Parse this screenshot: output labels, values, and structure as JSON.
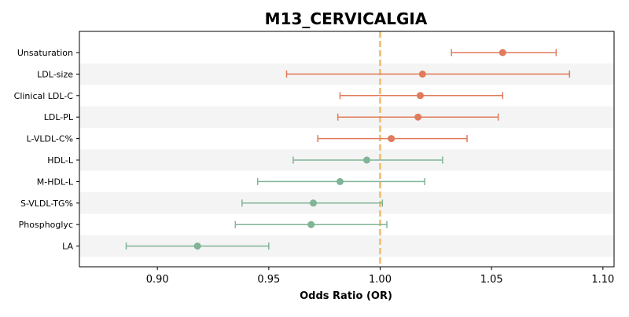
{
  "chart_data": {
    "type": "forest",
    "title": "M13_CERVICALGIA",
    "xlabel": "Odds Ratio (OR)",
    "ylabel": "",
    "xlim": [
      0.865,
      1.105
    ],
    "xticks": [
      0.9,
      0.95,
      1.0,
      1.05,
      1.1
    ],
    "xtick_labels": [
      "0.90",
      "0.95",
      "1.00",
      "1.05",
      "1.10"
    ],
    "reference_line": 1.0,
    "grid": false,
    "row_banding": true,
    "colors": {
      "positive": "#e07b5b",
      "negative": "#7fb496",
      "reference": "#f2c57c",
      "band": "#f4f4f4"
    },
    "rows": [
      {
        "label": "Unsaturation",
        "or": 1.055,
        "lower": 1.032,
        "upper": 1.079
      },
      {
        "label": "LDL-size",
        "or": 1.019,
        "lower": 0.958,
        "upper": 1.085
      },
      {
        "label": "Clinical LDL-C",
        "or": 1.018,
        "lower": 0.982,
        "upper": 1.055
      },
      {
        "label": "LDL-PL",
        "or": 1.017,
        "lower": 0.981,
        "upper": 1.053
      },
      {
        "label": "L-VLDL-C%",
        "or": 1.005,
        "lower": 0.972,
        "upper": 1.039
      },
      {
        "label": "HDL-L",
        "or": 0.994,
        "lower": 0.961,
        "upper": 1.028
      },
      {
        "label": "M-HDL-L",
        "or": 0.982,
        "lower": 0.945,
        "upper": 1.02
      },
      {
        "label": "S-VLDL-TG%",
        "or": 0.97,
        "lower": 0.938,
        "upper": 1.001
      },
      {
        "label": "Phosphoglyc",
        "or": 0.969,
        "lower": 0.935,
        "upper": 1.003
      },
      {
        "label": "LA",
        "or": 0.918,
        "lower": 0.886,
        "upper": 0.95
      }
    ]
  }
}
